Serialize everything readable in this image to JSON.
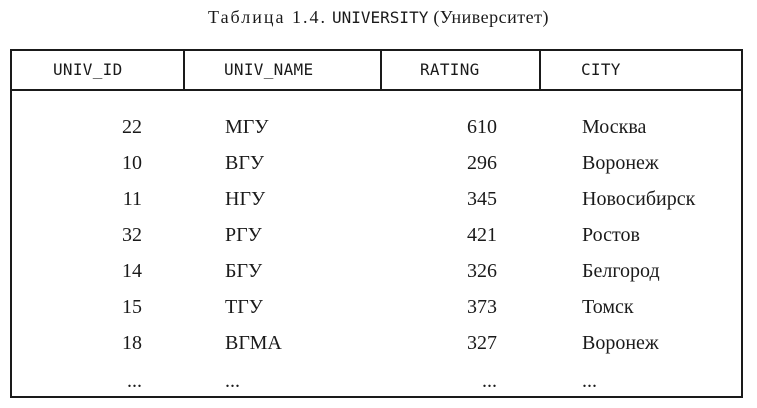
{
  "caption": {
    "label": "Таблица 1.4.",
    "table_name": "UNIVERSITY",
    "translation": "(Университет)"
  },
  "table": {
    "headers": [
      "UNIV_ID",
      "UNIV_NAME",
      "RATING",
      "CITY"
    ],
    "rows": [
      [
        "22",
        "МГУ",
        "610",
        "Москва"
      ],
      [
        "10",
        "ВГУ",
        "296",
        "Воронеж"
      ],
      [
        "11",
        "НГУ",
        "345",
        "Новосибирск"
      ],
      [
        "32",
        "РГУ",
        "421",
        "Ростов"
      ],
      [
        "14",
        "БГУ",
        "326",
        "Белгород"
      ],
      [
        "15",
        "ТГУ",
        "373",
        "Томск"
      ],
      [
        "18",
        "ВГМА",
        "327",
        "Воронеж"
      ],
      [
        "...",
        "...",
        "...",
        "..."
      ]
    ]
  }
}
